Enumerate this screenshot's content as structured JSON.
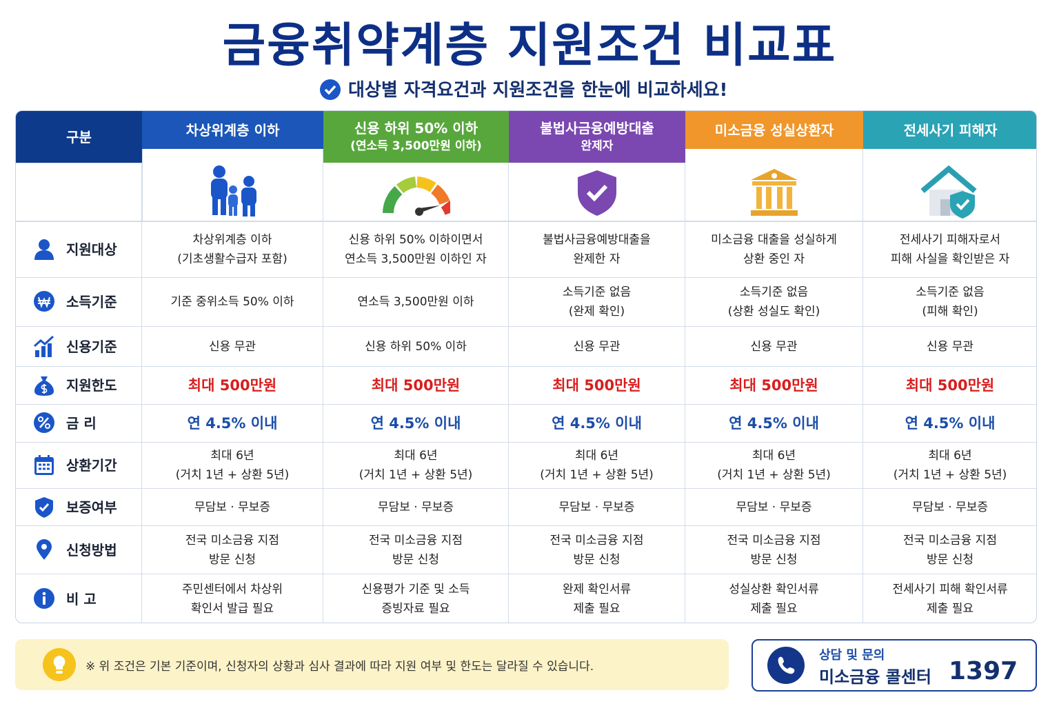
{
  "header": {
    "title": "금융취약계층 지원조건 비교표",
    "subtitle": "대상별 자격요건과 지원조건을 한눈에 비교하세요!"
  },
  "table": {
    "corner": "구분",
    "columns": [
      [
        "차상위계층 이하"
      ],
      [
        "신용 하위 50% 이하",
        "(연소득 3,500만원 이하)"
      ],
      [
        "불법사금융예방대출",
        "완제자"
      ],
      [
        "미소금융 성실상환자"
      ],
      [
        "전세사기 피해자"
      ]
    ],
    "rows": [
      {
        "label": "지원대상",
        "cells": [
          [
            "차상위계층 이하",
            "(기초생활수급자 포함)"
          ],
          [
            "신용 하위 50% 이하이면서",
            "연소득 3,500만원 이하인 자"
          ],
          [
            "불법사금융예방대출을",
            "완제한 자"
          ],
          [
            "미소금융 대출을 성실하게",
            "상환 중인 자"
          ],
          [
            "전세사기 피해자로서",
            "피해 사실을 확인받은 자"
          ]
        ]
      },
      {
        "label": "소득기준",
        "cells": [
          [
            "기준 중위소득 50% 이하"
          ],
          [
            "연소득 3,500만원 이하"
          ],
          [
            "소득기준 없음",
            "(완제 확인)"
          ],
          [
            "소득기준 없음",
            "(상환 성실도 확인)"
          ],
          [
            "소득기준 없음",
            "(피해 확인)"
          ]
        ]
      },
      {
        "label": "신용기준",
        "cells": [
          [
            "신용 무관"
          ],
          [
            "신용 하위 50% 이하"
          ],
          [
            "신용 무관"
          ],
          [
            "신용 무관"
          ],
          [
            "신용 무관"
          ]
        ]
      },
      {
        "label": "지원한도",
        "cells": [
          [
            "최대 500만원"
          ],
          [
            "최대 500만원"
          ],
          [
            "최대 500만원"
          ],
          [
            "최대 500만원"
          ],
          [
            "최대 500만원"
          ]
        ]
      },
      {
        "label": "금 리",
        "cells": [
          [
            "연 4.5% 이내"
          ],
          [
            "연 4.5% 이내"
          ],
          [
            "연 4.5% 이내"
          ],
          [
            "연 4.5% 이내"
          ],
          [
            "연 4.5% 이내"
          ]
        ]
      },
      {
        "label": "상환기간",
        "cells": [
          [
            "최대 6년",
            "(거치 1년 + 상환 5년)"
          ],
          [
            "최대 6년",
            "(거치 1년 + 상환 5년)"
          ],
          [
            "최대 6년",
            "(거치 1년 + 상환 5년)"
          ],
          [
            "최대 6년",
            "(거치 1년 + 상환 5년)"
          ],
          [
            "최대 6년",
            "(거치 1년 + 상환 5년)"
          ]
        ]
      },
      {
        "label": "보증여부",
        "cells": [
          [
            "무담보 · 무보증"
          ],
          [
            "무담보 · 무보증"
          ],
          [
            "무담보 · 무보증"
          ],
          [
            "무담보 · 무보증"
          ],
          [
            "무담보 · 무보증"
          ]
        ]
      },
      {
        "label": "신청방법",
        "cells": [
          [
            "전국 미소금융 지점",
            "방문 신청"
          ],
          [
            "전국 미소금융 지점",
            "방문 신청"
          ],
          [
            "전국 미소금융 지점",
            "방문 신청"
          ],
          [
            "전국 미소금융 지점",
            "방문 신청"
          ],
          [
            "전국 미소금융 지점",
            "방문 신청"
          ]
        ]
      },
      {
        "label": "비 고",
        "cells": [
          [
            "주민센터에서 차상위",
            "확인서 발급 필요"
          ],
          [
            "신용평가 기준 및 소득",
            "증빙자료 필요"
          ],
          [
            "완제 확인서류",
            "제출 필요"
          ],
          [
            "성실상환 확인서류",
            "제출 필요"
          ],
          [
            "전세사기 피해 확인서류",
            "제출 필요"
          ]
        ]
      }
    ]
  },
  "footer": {
    "note": "※ 위 조건은 기본 기준이며, 신청자의 상황과 심사 결과에 따라 지원 여부 및 한도는 달라질 수 있습니다.",
    "contact_label": "상담 및 문의",
    "contact_name": "미소금융 콜센터",
    "contact_number": "1397"
  }
}
